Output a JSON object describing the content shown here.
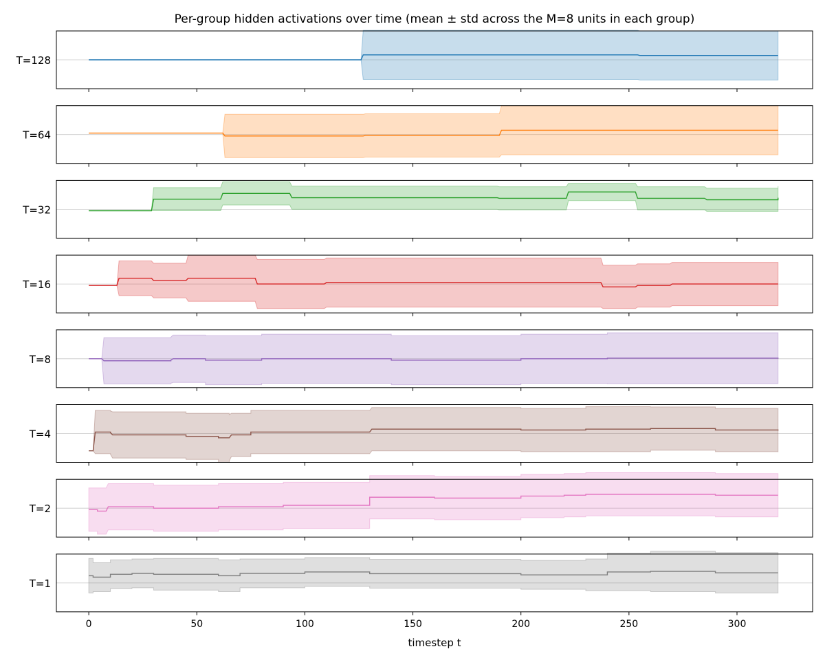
{
  "chart_data": {
    "type": "area",
    "title": "Per-group hidden activations over time (mean ± std across the M=8 units in each group)",
    "xlabel": "timestep t",
    "x_ticks": [
      0,
      50,
      100,
      150,
      200,
      250,
      300
    ],
    "xlim": [
      -15,
      335
    ],
    "ylim": [
      -1,
      1
    ],
    "x_end": 319,
    "grid": "horizontal reference line at 0 in each panel",
    "series": [
      {
        "name": "T=128",
        "color": "#1f77b4",
        "points": [
          [
            0,
            0,
            0
          ],
          [
            126,
            0,
            0
          ],
          [
            127,
            0.17,
            0.85
          ],
          [
            254,
            0.17,
            0.85
          ],
          [
            255,
            0.15,
            0.85
          ],
          [
            319,
            0.15,
            0.85
          ]
        ]
      },
      {
        "name": "T=64",
        "color": "#ff7f0e",
        "points": [
          [
            0,
            0.05,
            0
          ],
          [
            62,
            0.05,
            0
          ],
          [
            63,
            -0.05,
            0.75
          ],
          [
            127,
            -0.05,
            0.75
          ],
          [
            128,
            -0.03,
            0.75
          ],
          [
            190,
            -0.03,
            0.75
          ],
          [
            191,
            0.15,
            0.85
          ],
          [
            319,
            0.15,
            0.75
          ]
        ]
      },
      {
        "name": "T=32",
        "color": "#2ca02c",
        "points": [
          [
            0,
            -0.05,
            0
          ],
          [
            29,
            -0.05,
            0
          ],
          [
            30,
            0.35,
            0.4
          ],
          [
            61,
            0.35,
            0.4
          ],
          [
            62,
            0.55,
            0.4
          ],
          [
            93,
            0.55,
            0.4
          ],
          [
            94,
            0.4,
            0.4
          ],
          [
            125,
            0.4,
            0.4
          ],
          [
            126,
            0.4,
            0.4
          ],
          [
            189,
            0.4,
            0.4
          ],
          [
            190,
            0.38,
            0.4
          ],
          [
            221,
            0.38,
            0.4
          ],
          [
            222,
            0.6,
            0.3
          ],
          [
            253,
            0.6,
            0.3
          ],
          [
            254,
            0.38,
            0.4
          ],
          [
            285,
            0.38,
            0.4
          ],
          [
            286,
            0.33,
            0.4
          ],
          [
            317,
            0.33,
            0.4
          ],
          [
            319,
            0.4,
            0.4
          ]
        ]
      },
      {
        "name": "T=16",
        "color": "#d62728",
        "points": [
          [
            0,
            -0.05,
            0
          ],
          [
            13,
            -0.05,
            0
          ],
          [
            14,
            0.2,
            0.6
          ],
          [
            29,
            0.2,
            0.6
          ],
          [
            30,
            0.12,
            0.6
          ],
          [
            45,
            0.12,
            0.6
          ],
          [
            46,
            0.2,
            0.8
          ],
          [
            61,
            0.2,
            0.8
          ],
          [
            62,
            0.2,
            0.8
          ],
          [
            77,
            0.2,
            0.8
          ],
          [
            78,
            0,
            0.85
          ],
          [
            109,
            0,
            0.85
          ],
          [
            110,
            0.05,
            0.85
          ],
          [
            237,
            0.05,
            0.85
          ],
          [
            238,
            -0.1,
            0.75
          ],
          [
            253,
            -0.1,
            0.75
          ],
          [
            254,
            -0.05,
            0.75
          ],
          [
            269,
            -0.05,
            0.75
          ],
          [
            270,
            0,
            0.75
          ],
          [
            319,
            0,
            0.75
          ]
        ]
      },
      {
        "name": "T=8",
        "color": "#9467bd",
        "points": [
          [
            0,
            0,
            0
          ],
          [
            6,
            0,
            0
          ],
          [
            7,
            -0.07,
            0.8
          ],
          [
            38,
            -0.05,
            0.8
          ],
          [
            39,
            0,
            0.82
          ],
          [
            54,
            -0.05,
            0.85
          ],
          [
            80,
            0,
            0.85
          ],
          [
            110,
            0,
            0.85
          ],
          [
            140,
            -0.05,
            0.85
          ],
          [
            200,
            0,
            0.85
          ],
          [
            240,
            0.02,
            0.88
          ],
          [
            280,
            0.02,
            0.88
          ],
          [
            319,
            0,
            0.85
          ]
        ]
      },
      {
        "name": "T=4",
        "color": "#8c564b",
        "points": [
          [
            0,
            -0.6,
            0
          ],
          [
            2,
            -0.6,
            0
          ],
          [
            3,
            0.05,
            0.75
          ],
          [
            10,
            0.03,
            0.75
          ],
          [
            11,
            -0.05,
            0.8
          ],
          [
            30,
            -0.05,
            0.8
          ],
          [
            45,
            -0.1,
            0.8
          ],
          [
            60,
            -0.15,
            0.85
          ],
          [
            65,
            -0.15,
            0.8
          ],
          [
            66,
            -0.05,
            0.75
          ],
          [
            75,
            0.05,
            0.75
          ],
          [
            100,
            0.05,
            0.75
          ],
          [
            130,
            0.05,
            0.75
          ],
          [
            131,
            0.15,
            0.75
          ],
          [
            150,
            0.15,
            0.75
          ],
          [
            200,
            0.12,
            0.75
          ],
          [
            230,
            0.15,
            0.78
          ],
          [
            260,
            0.17,
            0.75
          ],
          [
            290,
            0.12,
            0.75
          ],
          [
            319,
            0.1,
            0.75
          ]
        ]
      },
      {
        "name": "T=2",
        "color": "#e377c2",
        "points": [
          [
            0,
            -0.05,
            0.75
          ],
          [
            4,
            -0.1,
            0.8
          ],
          [
            8,
            -0.1,
            0.8
          ],
          [
            9,
            0.05,
            0.8
          ],
          [
            30,
            0,
            0.8
          ],
          [
            40,
            0,
            0.8
          ],
          [
            60,
            0.05,
            0.8
          ],
          [
            90,
            0.1,
            0.8
          ],
          [
            126,
            0.1,
            0.8
          ],
          [
            130,
            0.38,
            0.75
          ],
          [
            160,
            0.35,
            0.75
          ],
          [
            190,
            0.35,
            0.75
          ],
          [
            200,
            0.42,
            0.75
          ],
          [
            220,
            0.45,
            0.75
          ],
          [
            230,
            0.48,
            0.75
          ],
          [
            260,
            0.48,
            0.75
          ],
          [
            290,
            0.45,
            0.75
          ],
          [
            319,
            0.45,
            0.75
          ]
        ]
      },
      {
        "name": "T=1",
        "color": "#7f7f7f",
        "points": [
          [
            0,
            0.25,
            0.6
          ],
          [
            2,
            0.2,
            0.5
          ],
          [
            8,
            0.2,
            0.5
          ],
          [
            10,
            0.3,
            0.5
          ],
          [
            20,
            0.33,
            0.5
          ],
          [
            30,
            0.3,
            0.55
          ],
          [
            60,
            0.25,
            0.55
          ],
          [
            65,
            0.25,
            0.55
          ],
          [
            70,
            0.33,
            0.5
          ],
          [
            100,
            0.38,
            0.5
          ],
          [
            130,
            0.32,
            0.5
          ],
          [
            200,
            0.28,
            0.5
          ],
          [
            230,
            0.28,
            0.55
          ],
          [
            240,
            0.38,
            0.65
          ],
          [
            260,
            0.4,
            0.7
          ],
          [
            290,
            0.35,
            0.7
          ],
          [
            319,
            0.35,
            0.7
          ]
        ]
      }
    ]
  }
}
